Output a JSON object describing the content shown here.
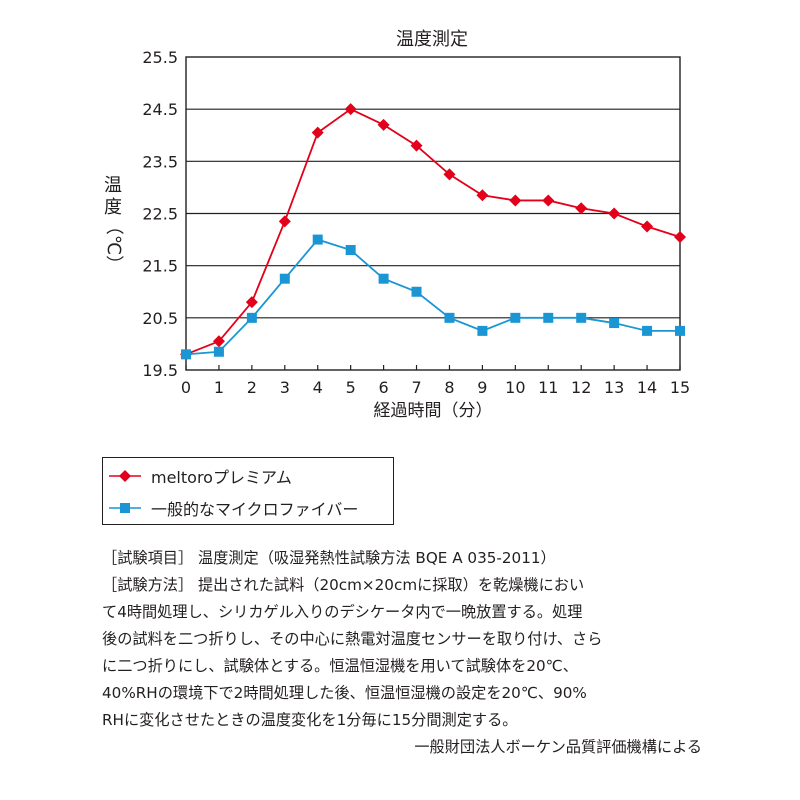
{
  "chart_data": {
    "type": "line",
    "title": "温度測定",
    "xlabel": "経過時間（分）",
    "ylabel": "温度（℃）",
    "x": [
      0,
      1,
      2,
      3,
      4,
      5,
      6,
      7,
      8,
      9,
      10,
      11,
      12,
      13,
      14,
      15
    ],
    "x_tick_labels": [
      "0",
      "1",
      "2",
      "3",
      "4",
      "5",
      "6",
      "7",
      "8",
      "9",
      "10",
      "11",
      "12",
      "13",
      "14",
      "15"
    ],
    "xlim": [
      0,
      15
    ],
    "ylim": [
      19.5,
      25.5
    ],
    "y_ticks": [
      19.5,
      20.5,
      21.5,
      22.5,
      23.5,
      24.5,
      25.5
    ],
    "y_tick_labels": [
      "19.5",
      "20.5",
      "21.5",
      "22.5",
      "23.5",
      "24.5",
      "25.5"
    ],
    "grid": "horizontal",
    "legend_position": "below",
    "series": [
      {
        "name": "meltoroプレミアム",
        "color": "#e2001a",
        "marker": "diamond",
        "values": [
          19.8,
          20.05,
          20.8,
          22.35,
          24.05,
          24.5,
          24.2,
          23.8,
          23.25,
          22.85,
          22.75,
          22.75,
          22.6,
          22.5,
          22.25,
          22.05
        ]
      },
      {
        "name": "一般的なマイクロファイバー",
        "color": "#1a96d4",
        "marker": "square",
        "values": [
          19.8,
          19.85,
          20.5,
          21.25,
          22.0,
          21.8,
          21.25,
          21.0,
          20.5,
          20.25,
          20.5,
          20.5,
          20.5,
          20.4,
          20.25,
          20.25
        ]
      }
    ]
  },
  "notes": {
    "line1": "［試験項目］ 温度測定（吸湿発熱性試験方法 BQE A 035-2011）",
    "line2": "［試験方法］ 提出された試料（20cm×20cmに採取）を乾燥機におい",
    "line3": "て4時間処理し、シリカゲル入りのデシケータ内で一晩放置する。処理",
    "line4": "後の試料を二つ折りし、その中心に熱電対温度センサーを取り付け、さら",
    "line5": "に二つ折りにし、試験体とする。恒温恒湿機を用いて試験体を20℃、",
    "line6": "40%RHの環境下で2時間処理した後、恒温恒湿機の設定を20℃、90%",
    "line7": "RHに変化させたときの温度変化を1分毎に15分間測定する。",
    "source": "一般財団法人ボーケン品質評価機構による"
  }
}
